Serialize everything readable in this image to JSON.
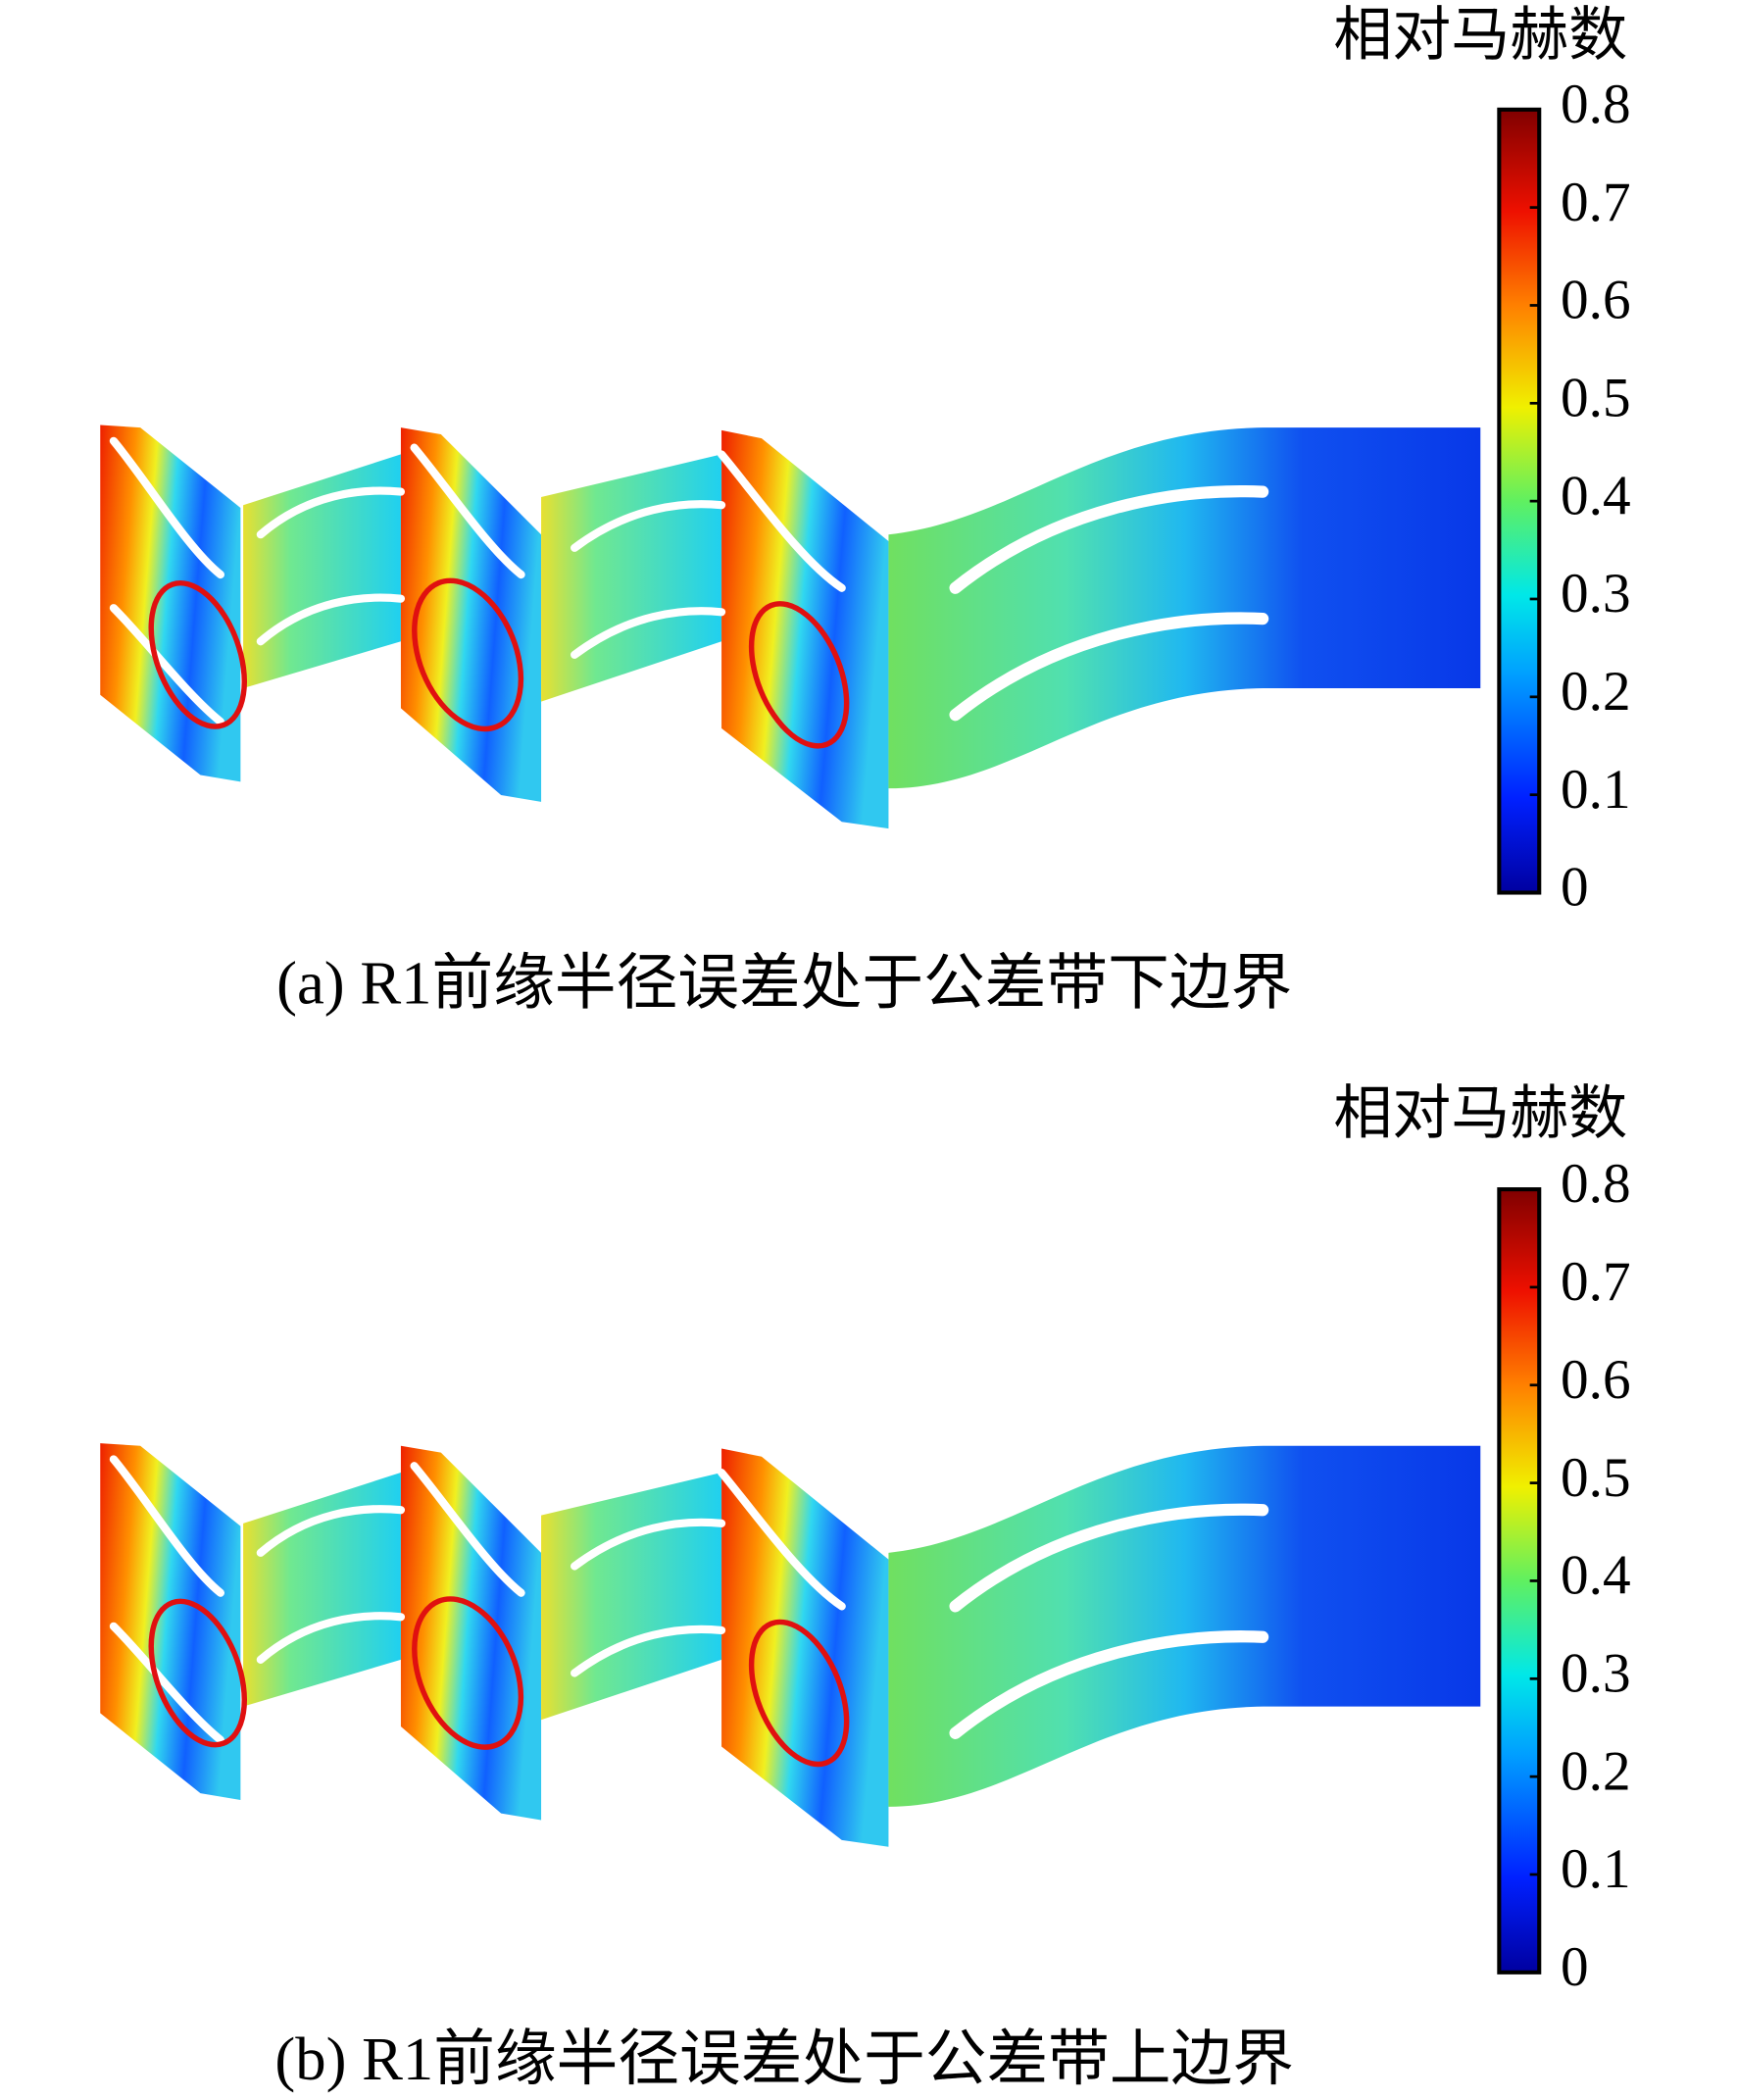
{
  "panels": [
    {
      "colorbar": {
        "title": "相对马赫数",
        "ticks": [
          0.8,
          0.7,
          0.6,
          0.5,
          0.4,
          0.3,
          0.2,
          0.1,
          0
        ]
      },
      "caption": "(a) R1前缘半径误差处于公差带下边界"
    },
    {
      "colorbar": {
        "title": "相对马赫数",
        "ticks": [
          0.8,
          0.7,
          0.6,
          0.5,
          0.4,
          0.3,
          0.2,
          0.1,
          0
        ]
      },
      "caption": "(b) R1前缘半径误差处于公差带上边界"
    }
  ]
}
